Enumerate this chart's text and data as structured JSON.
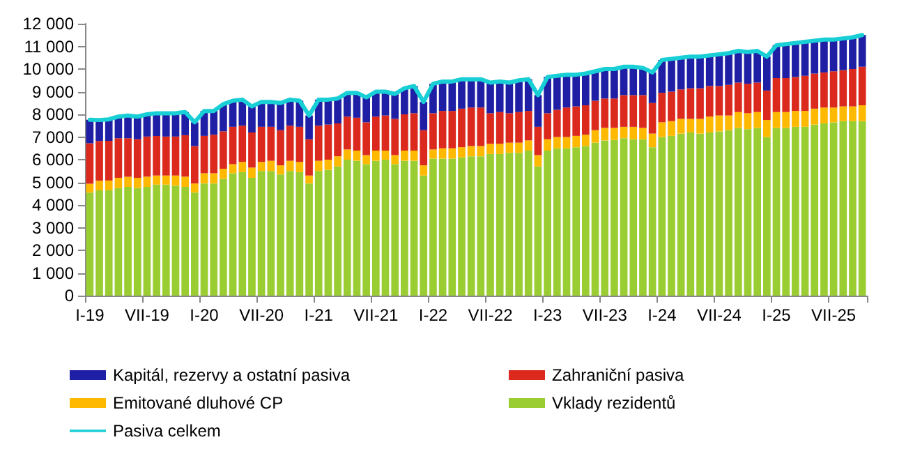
{
  "chart_data": {
    "type": "bar",
    "stacked": true,
    "grid": false,
    "legend": "bottom",
    "marker": "none",
    "categories": [
      "I-19",
      null,
      null,
      null,
      null,
      null,
      "VII-19",
      null,
      null,
      null,
      null,
      null,
      "I-20",
      null,
      null,
      null,
      null,
      null,
      "VII-20",
      null,
      null,
      null,
      null,
      null,
      "I-21",
      null,
      null,
      null,
      null,
      null,
      "VII-21",
      null,
      null,
      null,
      null,
      null,
      "I-22",
      null,
      null,
      null,
      null,
      null,
      "VII-22",
      null,
      null,
      null,
      null,
      null,
      "I-23",
      null,
      null,
      null,
      null,
      null,
      "VII-23",
      null,
      null,
      null,
      null,
      null,
      "I-24",
      null,
      null,
      null,
      null,
      null,
      "VII-24",
      null,
      null,
      null,
      null,
      null,
      "I-25",
      null,
      null,
      null,
      null,
      null,
      "VII-25",
      null,
      null,
      null
    ],
    "ylim": [
      0,
      12000
    ],
    "yticks": [
      0,
      {
        "value": 1000,
        "label": "1 000"
      },
      {
        "value": 2000,
        "label": "2 000"
      },
      {
        "value": 3000,
        "label": "3 000"
      },
      {
        "value": 4000,
        "label": "4 000"
      },
      {
        "value": 5000,
        "label": "5 000"
      },
      {
        "value": 6000,
        "label": "6 000"
      },
      {
        "value": 7000,
        "label": "7 000"
      },
      {
        "value": 8000,
        "label": "8 000"
      },
      {
        "value": 9000,
        "label": "9 000"
      },
      {
        "value": 10000,
        "label": "10 000"
      },
      {
        "value": 11000,
        "label": "11 000"
      },
      {
        "value": 12000,
        "label": "12 000"
      }
    ],
    "series": [
      {
        "name": "Vklady rezidentů",
        "color": "#9acd32",
        "values": [
          4550,
          4650,
          4650,
          4750,
          4800,
          4750,
          4800,
          4900,
          4900,
          4850,
          4800,
          4550,
          4950,
          4950,
          5150,
          5400,
          5450,
          5200,
          5500,
          5500,
          5350,
          5500,
          5450,
          4950,
          5500,
          5550,
          5700,
          6000,
          5950,
          5800,
          5950,
          6000,
          5800,
          5950,
          5950,
          5300,
          6050,
          6050,
          6050,
          6100,
          6150,
          6150,
          6250,
          6250,
          6300,
          6300,
          6400,
          5700,
          6400,
          6500,
          6500,
          6550,
          6600,
          6750,
          6850,
          6870,
          6950,
          6900,
          6900,
          6550,
          7000,
          7050,
          7150,
          7200,
          7150,
          7200,
          7250,
          7300,
          7400,
          7350,
          7400,
          7000,
          7400,
          7400,
          7450,
          7450,
          7550,
          7600,
          7650,
          7700,
          7700,
          7700
        ]
      },
      {
        "name": "Emitované dluhové CP",
        "color": "#ffb900",
        "values": [
          390,
          420,
          430,
          450,
          450,
          450,
          450,
          400,
          400,
          450,
          450,
          400,
          450,
          450,
          450,
          400,
          450,
          450,
          400,
          450,
          400,
          450,
          450,
          350,
          450,
          450,
          450,
          450,
          450,
          400,
          450,
          400,
          400,
          450,
          450,
          450,
          400,
          450,
          450,
          450,
          450,
          450,
          450,
          450,
          450,
          450,
          450,
          500,
          500,
          500,
          500,
          500,
          500,
          550,
          550,
          530,
          500,
          550,
          500,
          600,
          650,
          650,
          650,
          600,
          650,
          700,
          700,
          650,
          700,
          700,
          700,
          750,
          700,
          700,
          700,
          700,
          700,
          700,
          650,
          650,
          650,
          700
        ]
      },
      {
        "name": "Zahraniční pasiva",
        "color": "#dc291e",
        "values": [
          1780,
          1750,
          1750,
          1750,
          1700,
          1700,
          1770,
          1750,
          1720,
          1720,
          1830,
          1650,
          1650,
          1700,
          1650,
          1650,
          1600,
          1550,
          1550,
          1500,
          1550,
          1550,
          1550,
          1600,
          1550,
          1550,
          1450,
          1450,
          1450,
          1450,
          1500,
          1550,
          1600,
          1600,
          1650,
          1550,
          1600,
          1650,
          1650,
          1700,
          1700,
          1700,
          1350,
          1400,
          1300,
          1350,
          1300,
          1250,
          1150,
          1200,
          1300,
          1300,
          1300,
          1300,
          1300,
          1300,
          1400,
          1400,
          1450,
          1350,
          1300,
          1300,
          1300,
          1350,
          1350,
          1350,
          1300,
          1350,
          1300,
          1300,
          1300,
          1300,
          1500,
          1500,
          1500,
          1550,
          1550,
          1550,
          1600,
          1600,
          1650,
          1700
        ]
      },
      {
        "name": "Kapitál, rezervy a ostatní pasiva",
        "color": "#1f1fa6",
        "values": [
          1040,
          930,
          950,
          950,
          1000,
          1000,
          980,
          1000,
          1030,
          1030,
          1020,
          1050,
          1100,
          1050,
          1200,
          1150,
          1150,
          1150,
          1100,
          1100,
          1200,
          1150,
          1150,
          1050,
          1150,
          1100,
          1100,
          1050,
          1100,
          1100,
          1100,
          1050,
          1100,
          1150,
          1200,
          1250,
          1300,
          1300,
          1300,
          1300,
          1250,
          1250,
          1350,
          1350,
          1350,
          1400,
          1400,
          1400,
          1600,
          1500,
          1450,
          1400,
          1400,
          1300,
          1300,
          1300,
          1250,
          1250,
          1200,
          1350,
          1450,
          1450,
          1400,
          1400,
          1400,
          1350,
          1400,
          1400,
          1400,
          1400,
          1400,
          1500,
          1450,
          1500,
          1500,
          1500,
          1450,
          1450,
          1400,
          1400,
          1400,
          1400
        ]
      },
      {
        "name": "Pasiva celkem",
        "type": "line",
        "color": "#19cfd6",
        "values": [
          7760,
          7750,
          7780,
          7900,
          7950,
          7900,
          8000,
          8050,
          8050,
          8050,
          8100,
          7650,
          8150,
          8150,
          8450,
          8600,
          8650,
          8350,
          8550,
          8550,
          8500,
          8650,
          8600,
          7950,
          8650,
          8650,
          8700,
          8950,
          8950,
          8750,
          9000,
          9000,
          8900,
          9150,
          9250,
          8550,
          9350,
          9450,
          9450,
          9550,
          9550,
          9550,
          9400,
          9450,
          9400,
          9500,
          9550,
          8850,
          9650,
          9700,
          9750,
          9750,
          9800,
          9900,
          10000,
          10000,
          10100,
          10100,
          10050,
          9850,
          10400,
          10450,
          10500,
          10550,
          10550,
          10600,
          10650,
          10700,
          10800,
          10750,
          10800,
          10550,
          11050,
          11100,
          11150,
          11200,
          11250,
          11300,
          11300,
          11350,
          11400,
          11500
        ]
      }
    ]
  }
}
